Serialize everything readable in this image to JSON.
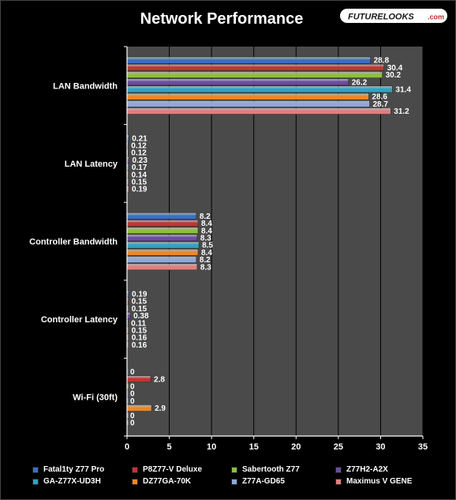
{
  "logo": {
    "text": "FUTURELOOKS",
    "suffix": ".com"
  },
  "chart_data": {
    "type": "bar",
    "orientation": "horizontal",
    "title": "Network Performance",
    "categories": [
      "LAN Bandwidth",
      "LAN Latency",
      "Controller Bandwidth",
      "Controller Latency",
      "Wi-Fi (30ft)"
    ],
    "xlim": [
      0,
      35
    ],
    "xticks": [
      0,
      5,
      10,
      15,
      20,
      25,
      30,
      35
    ],
    "grid": true,
    "legend_position": "bottom",
    "series": [
      {
        "name": "Fatal1ty Z77 Pro",
        "color": "#3a6fc4",
        "values": [
          28.8,
          0.21,
          8.2,
          0.19,
          0
        ]
      },
      {
        "name": "P8Z77-V Deluxe",
        "color": "#c33434",
        "values": [
          30.4,
          0.12,
          8.4,
          0.15,
          2.8
        ]
      },
      {
        "name": "Sabertooth Z77",
        "color": "#8cbf3c",
        "values": [
          30.2,
          0.12,
          8.4,
          0.15,
          0
        ]
      },
      {
        "name": "Z77H2-A2X",
        "color": "#6b4ca2",
        "values": [
          26.2,
          0.23,
          8.3,
          0.38,
          0
        ]
      },
      {
        "name": "GA-Z77X-UD3H",
        "color": "#2ea3c2",
        "values": [
          31.4,
          0.17,
          8.5,
          0.11,
          0
        ]
      },
      {
        "name": "DZ77GA-70K",
        "color": "#e8882a",
        "values": [
          28.6,
          0.14,
          8.4,
          0.15,
          2.9
        ]
      },
      {
        "name": "Z77A-GD65",
        "color": "#8fa7dc",
        "values": [
          28.7,
          0.15,
          8.2,
          0.16,
          0
        ]
      },
      {
        "name": "Maximus V GENE",
        "color": "#e07f7f",
        "values": [
          31.2,
          0.19,
          8.3,
          0.16,
          0
        ]
      }
    ]
  }
}
